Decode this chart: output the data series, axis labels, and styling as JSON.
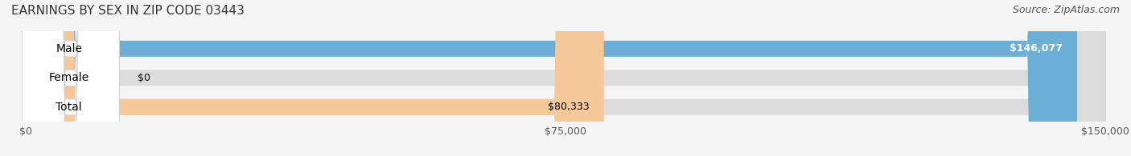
{
  "title": "EARNINGS BY SEX IN ZIP CODE 03443",
  "source": "Source: ZipAtlas.com",
  "categories": [
    "Male",
    "Female",
    "Total"
  ],
  "values": [
    146077,
    0,
    80333
  ],
  "max_value": 150000,
  "bar_colors": [
    "#6baed6",
    "#f4a0b0",
    "#f5c89a"
  ],
  "label_bg_color": "#ffffff",
  "bar_bg_color": "#e8e8e8",
  "value_labels": [
    "$146,077",
    "$0",
    "$80,333"
  ],
  "x_ticks": [
    0,
    75000,
    150000
  ],
  "x_tick_labels": [
    "$0",
    "$75,000",
    "$150,000"
  ],
  "title_fontsize": 11,
  "source_fontsize": 9,
  "label_fontsize": 10,
  "value_fontsize": 9,
  "background_color": "#f5f5f5"
}
